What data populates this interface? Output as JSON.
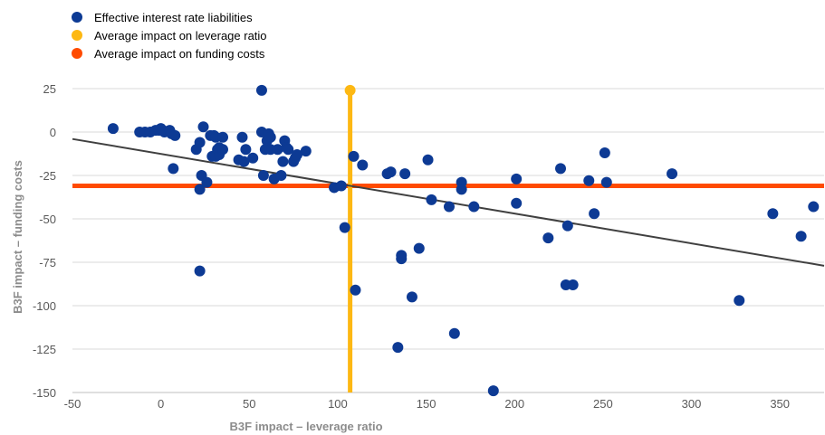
{
  "chart_data": {
    "type": "scatter",
    "xlabel": "B3F impact – leverage ratio",
    "ylabel": "B3F impact – funding costs",
    "xlim": [
      -50,
      375
    ],
    "ylim": [
      -150,
      25
    ],
    "x_ticks": [
      -50,
      0,
      50,
      100,
      150,
      200,
      250,
      300,
      350
    ],
    "y_ticks": [
      25,
      0,
      -25,
      -50,
      -75,
      -100,
      -125,
      -150
    ],
    "grid": "horizontal",
    "legend_position": "top-left",
    "series": [
      {
        "name": "Effective interest rate liabilities",
        "color": "#0d3a94",
        "points": [
          [
            -27,
            2
          ],
          [
            -12,
            0
          ],
          [
            -9,
            0
          ],
          [
            -6,
            0
          ],
          [
            -3,
            1
          ],
          [
            -1,
            1
          ],
          [
            0,
            2
          ],
          [
            1,
            1
          ],
          [
            2,
            0
          ],
          [
            5,
            1
          ],
          [
            6,
            -1
          ],
          [
            8,
            -2
          ],
          [
            7,
            -21
          ],
          [
            20,
            -10
          ],
          [
            22,
            -6
          ],
          [
            23,
            -25
          ],
          [
            22,
            -33
          ],
          [
            24,
            3
          ],
          [
            26,
            -29
          ],
          [
            28,
            -2
          ],
          [
            29,
            -14
          ],
          [
            30,
            -2
          ],
          [
            31,
            -3
          ],
          [
            31,
            -14
          ],
          [
            32,
            -10
          ],
          [
            33,
            -13
          ],
          [
            33,
            -9
          ],
          [
            35,
            -3
          ],
          [
            35,
            -10
          ],
          [
            22,
            -80
          ],
          [
            44,
            -16
          ],
          [
            46,
            -3
          ],
          [
            47,
            -17
          ],
          [
            48,
            -10
          ],
          [
            52,
            -15
          ],
          [
            57,
            24
          ],
          [
            57,
            0
          ],
          [
            58,
            -25
          ],
          [
            59,
            -10
          ],
          [
            60,
            -5
          ],
          [
            61,
            -1
          ],
          [
            62,
            -3
          ],
          [
            62,
            -10
          ],
          [
            64,
            -27
          ],
          [
            66,
            -10
          ],
          [
            68,
            -25
          ],
          [
            69,
            -17
          ],
          [
            70,
            -5
          ],
          [
            71,
            -9
          ],
          [
            72,
            -10
          ],
          [
            75,
            -17
          ],
          [
            76,
            -15
          ],
          [
            77,
            -13
          ],
          [
            82,
            -11
          ],
          [
            98,
            -32
          ],
          [
            102,
            -31
          ],
          [
            104,
            -55
          ],
          [
            109,
            -14
          ],
          [
            110,
            -91
          ],
          [
            114,
            -19
          ],
          [
            128,
            -24
          ],
          [
            130,
            -23
          ],
          [
            134,
            -124
          ],
          [
            136,
            -73
          ],
          [
            136,
            -71
          ],
          [
            138,
            -24
          ],
          [
            142,
            -95
          ],
          [
            146,
            -67
          ],
          [
            151,
            -16
          ],
          [
            153,
            -39
          ],
          [
            163,
            -43
          ],
          [
            166,
            -116
          ],
          [
            170,
            -29
          ],
          [
            170,
            -33
          ],
          [
            177,
            -43
          ],
          [
            188,
            -149
          ],
          [
            201,
            -27
          ],
          [
            201,
            -41
          ],
          [
            219,
            -61
          ],
          [
            226,
            -21
          ],
          [
            229,
            -88
          ],
          [
            230,
            -54
          ],
          [
            233,
            -88
          ],
          [
            242,
            -28
          ],
          [
            245,
            -47
          ],
          [
            251,
            -12
          ],
          [
            252,
            -29
          ],
          [
            289,
            -24
          ],
          [
            327,
            -97
          ],
          [
            346,
            -47
          ],
          [
            362,
            -60
          ],
          [
            369,
            -43
          ]
        ]
      },
      {
        "name": "Average impact on leverage ratio",
        "color": "#fdb813",
        "x": 107,
        "marker_y": 24
      },
      {
        "name": "Average impact on funding costs",
        "color": "#ff4b00",
        "y": -31
      }
    ],
    "trendline": {
      "color": "#404040",
      "x": [
        -50,
        375
      ],
      "y": [
        -4,
        -77
      ]
    }
  }
}
